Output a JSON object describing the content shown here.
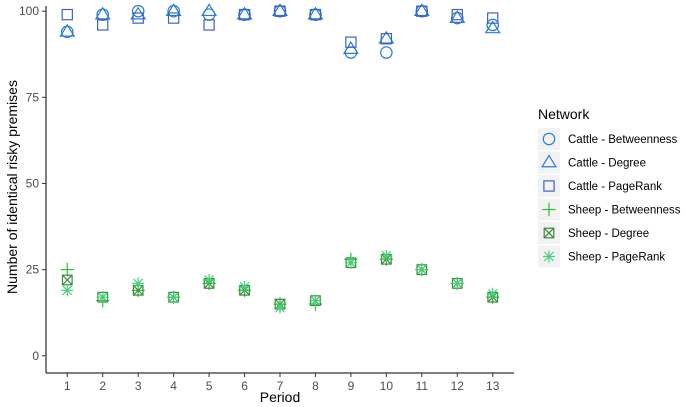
{
  "chart_data": {
    "type": "scatter",
    "title": "",
    "xlabel": "Period",
    "ylabel": "Number of identical risky premises",
    "x": [
      1,
      2,
      3,
      4,
      5,
      6,
      7,
      8,
      9,
      10,
      11,
      12,
      13
    ],
    "x_tick_labels": [
      "1",
      "2",
      "3",
      "4",
      "5",
      "6",
      "7",
      "8",
      "9",
      "10",
      "11",
      "12",
      "13"
    ],
    "y_ticks": [
      0,
      25,
      50,
      75,
      100
    ],
    "y_tick_labels": [
      "0",
      "25",
      "50",
      "75",
      "100"
    ],
    "xlim": [
      0.4,
      13.6
    ],
    "ylim": [
      -5,
      101.5
    ],
    "grid": false,
    "legend": {
      "title": "Network",
      "placement": "right"
    },
    "series": [
      {
        "name": "Cattle - Betweenness",
        "color": "#2a7bd6",
        "marker": "circle",
        "values": [
          94,
          99,
          100,
          100,
          99,
          99,
          100,
          99,
          88,
          88,
          100,
          98,
          96
        ]
      },
      {
        "name": "Cattle - Degree",
        "color": "#2a7bd6",
        "marker": "triangle",
        "values": [
          94,
          99,
          99,
          100,
          100,
          99,
          100,
          99,
          89,
          92,
          100,
          98,
          95
        ]
      },
      {
        "name": "Cattle - PageRank",
        "color": "#3d62c7",
        "marker": "square",
        "values": [
          99,
          96,
          98,
          98,
          96,
          99,
          100,
          99,
          91,
          92,
          100,
          99,
          98
        ]
      },
      {
        "name": "Sheep - Betweenness",
        "color": "#2fbf2f",
        "marker": "plus",
        "values": [
          25,
          16,
          19,
          17,
          21,
          19,
          15,
          15,
          28,
          28,
          25,
          21,
          17
        ]
      },
      {
        "name": "Sheep - Degree",
        "color": "#3a8a3a",
        "marker": "boxcross",
        "values": [
          22,
          17,
          19,
          17,
          21,
          19,
          15,
          16,
          27,
          28,
          25,
          21,
          17
        ]
      },
      {
        "name": "Sheep - PageRank",
        "color": "#45d07a",
        "marker": "asterisk",
        "values": [
          19,
          17,
          21,
          17,
          22,
          20,
          14,
          16,
          27,
          29,
          25,
          21,
          18
        ]
      }
    ]
  }
}
